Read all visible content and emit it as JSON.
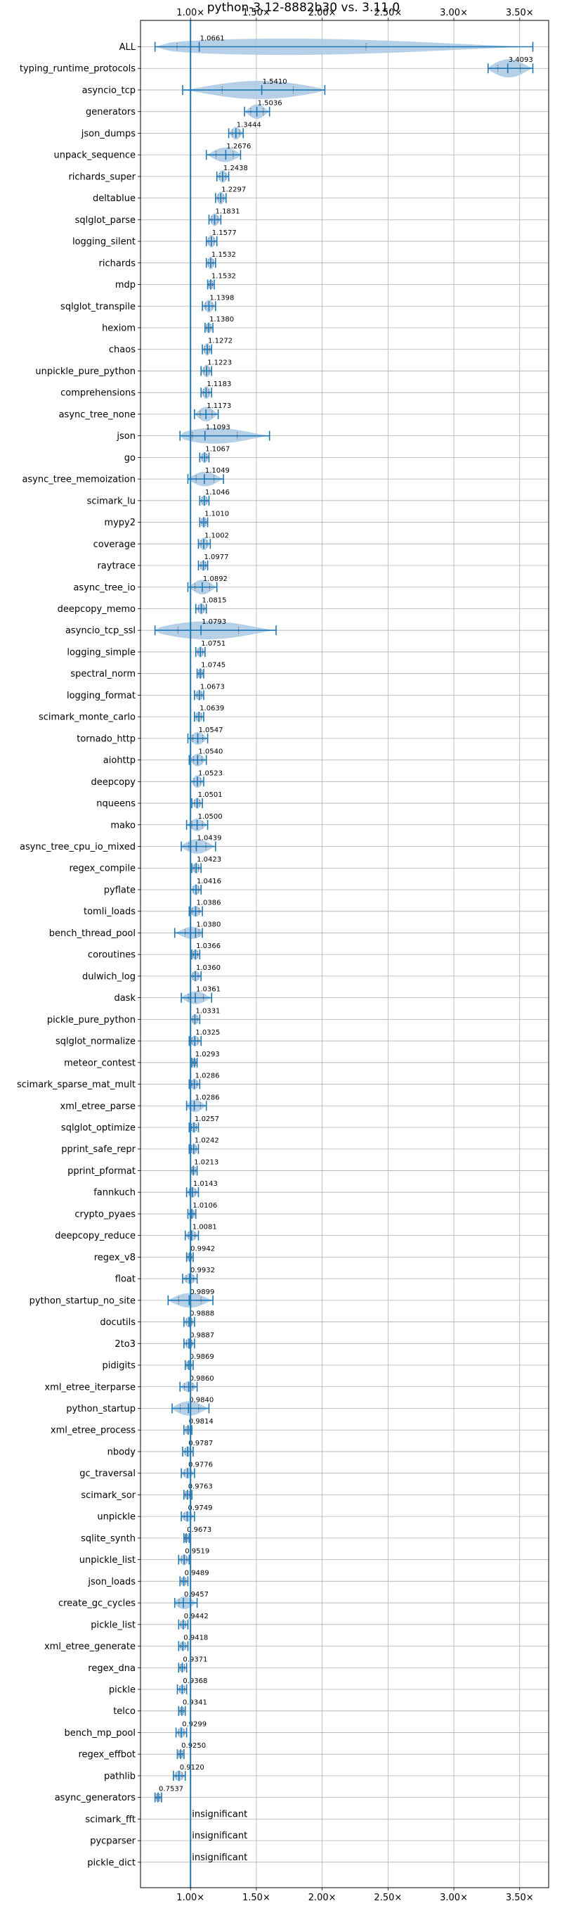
{
  "chart_data": {
    "type": "violin",
    "title": "python-3.12-8882b30 vs. 3.11.0",
    "xlim": [
      0.62,
      3.72
    ],
    "xticks": [
      1.0,
      1.5,
      2.0,
      2.5,
      3.0,
      3.5
    ],
    "xtick_labels": [
      "1.00×",
      "1.50×",
      "2.00×",
      "2.50×",
      "3.00×",
      "3.50×"
    ],
    "x_tick_position": "top and bottom",
    "grid": true,
    "reference_line": 1.0,
    "color": "#1f77b4",
    "fill_color": "#a9c8e4",
    "benchmarks": [
      {
        "name": "ALL",
        "label": "1.0661",
        "median": 1.0661,
        "min": 0.73,
        "max": 3.6,
        "width": 1.0
      },
      {
        "name": "typing_runtime_protocols",
        "label": "3.4093",
        "median": 3.4093,
        "min": 3.26,
        "max": 3.6,
        "width": 1.0
      },
      {
        "name": "asyncio_tcp",
        "label": "1.5410",
        "median": 1.541,
        "min": 0.94,
        "max": 2.02,
        "width": 1.0
      },
      {
        "name": "generators",
        "label": "1.5036",
        "median": 1.5036,
        "min": 1.41,
        "max": 1.6,
        "width": 0.8
      },
      {
        "name": "json_dumps",
        "label": "1.3444",
        "median": 1.3444,
        "min": 1.29,
        "max": 1.4,
        "width": 0.7
      },
      {
        "name": "unpack_sequence",
        "label": "1.2676",
        "median": 1.2676,
        "min": 1.12,
        "max": 1.38,
        "width": 0.8
      },
      {
        "name": "richards_super",
        "label": "1.2438",
        "median": 1.2438,
        "min": 1.2,
        "max": 1.29,
        "width": 0.7
      },
      {
        "name": "deltablue",
        "label": "1.2297",
        "median": 1.2297,
        "min": 1.19,
        "max": 1.27,
        "width": 0.7
      },
      {
        "name": "sqlglot_parse",
        "label": "1.1831",
        "median": 1.1831,
        "min": 1.14,
        "max": 1.23,
        "width": 0.7
      },
      {
        "name": "logging_silent",
        "label": "1.1577",
        "median": 1.1577,
        "min": 1.12,
        "max": 1.2,
        "width": 0.7
      },
      {
        "name": "richards",
        "label": "1.1532",
        "median": 1.1532,
        "min": 1.12,
        "max": 1.19,
        "width": 0.7
      },
      {
        "name": "mdp",
        "label": "1.1532",
        "median": 1.1532,
        "min": 1.13,
        "max": 1.18,
        "width": 0.6
      },
      {
        "name": "sqlglot_transpile",
        "label": "1.1398",
        "median": 1.1398,
        "min": 1.09,
        "max": 1.19,
        "width": 0.7
      },
      {
        "name": "hexiom",
        "label": "1.1380",
        "median": 1.138,
        "min": 1.11,
        "max": 1.17,
        "width": 0.6
      },
      {
        "name": "chaos",
        "label": "1.1272",
        "median": 1.1272,
        "min": 1.09,
        "max": 1.16,
        "width": 0.7
      },
      {
        "name": "unpickle_pure_python",
        "label": "1.1223",
        "median": 1.1223,
        "min": 1.08,
        "max": 1.16,
        "width": 0.7
      },
      {
        "name": "comprehensions",
        "label": "1.1183",
        "median": 1.1183,
        "min": 1.08,
        "max": 1.16,
        "width": 0.7
      },
      {
        "name": "async_tree_none",
        "label": "1.1173",
        "median": 1.1173,
        "min": 1.03,
        "max": 1.21,
        "width": 0.8
      },
      {
        "name": "json",
        "label": "1.1093",
        "median": 1.1093,
        "min": 0.92,
        "max": 1.6,
        "width": 0.9
      },
      {
        "name": "go",
        "label": "1.1067",
        "median": 1.1067,
        "min": 1.07,
        "max": 1.14,
        "width": 0.6
      },
      {
        "name": "async_tree_memoization",
        "label": "1.1049",
        "median": 1.1049,
        "min": 0.98,
        "max": 1.25,
        "width": 0.8
      },
      {
        "name": "scimark_lu",
        "label": "1.1046",
        "median": 1.1046,
        "min": 1.07,
        "max": 1.14,
        "width": 0.6
      },
      {
        "name": "mypy2",
        "label": "1.1010",
        "median": 1.101,
        "min": 1.07,
        "max": 1.13,
        "width": 0.6
      },
      {
        "name": "coverage",
        "label": "1.1002",
        "median": 1.1002,
        "min": 1.06,
        "max": 1.15,
        "width": 0.7
      },
      {
        "name": "raytrace",
        "label": "1.0977",
        "median": 1.0977,
        "min": 1.06,
        "max": 1.13,
        "width": 0.6
      },
      {
        "name": "async_tree_io",
        "label": "1.0892",
        "median": 1.0892,
        "min": 0.98,
        "max": 1.2,
        "width": 0.8
      },
      {
        "name": "deepcopy_memo",
        "label": "1.0815",
        "median": 1.0815,
        "min": 1.04,
        "max": 1.12,
        "width": 0.6
      },
      {
        "name": "asyncio_tcp_ssl",
        "label": "1.0793",
        "median": 1.0793,
        "min": 0.73,
        "max": 1.65,
        "width": 1.0
      },
      {
        "name": "logging_simple",
        "label": "1.0751",
        "median": 1.0751,
        "min": 1.04,
        "max": 1.11,
        "width": 0.6
      },
      {
        "name": "spectral_norm",
        "label": "1.0745",
        "median": 1.0745,
        "min": 1.05,
        "max": 1.1,
        "width": 0.6
      },
      {
        "name": "logging_format",
        "label": "1.0673",
        "median": 1.0673,
        "min": 1.03,
        "max": 1.1,
        "width": 0.6
      },
      {
        "name": "scimark_monte_carlo",
        "label": "1.0639",
        "median": 1.0639,
        "min": 1.03,
        "max": 1.1,
        "width": 0.6
      },
      {
        "name": "tornado_http",
        "label": "1.0547",
        "median": 1.0547,
        "min": 0.98,
        "max": 1.13,
        "width": 0.7
      },
      {
        "name": "aiohttp",
        "label": "1.0540",
        "median": 1.054,
        "min": 0.99,
        "max": 1.12,
        "width": 0.7
      },
      {
        "name": "deepcopy",
        "label": "1.0523",
        "median": 1.0523,
        "min": 1.0,
        "max": 1.1,
        "width": 0.7
      },
      {
        "name": "nqueens",
        "label": "1.0501",
        "median": 1.0501,
        "min": 1.01,
        "max": 1.09,
        "width": 0.6
      },
      {
        "name": "mako",
        "label": "1.0500",
        "median": 1.05,
        "min": 0.97,
        "max": 1.13,
        "width": 0.7
      },
      {
        "name": "async_tree_cpu_io_mixed",
        "label": "1.0439",
        "median": 1.0439,
        "min": 0.93,
        "max": 1.19,
        "width": 0.8
      },
      {
        "name": "regex_compile",
        "label": "1.0423",
        "median": 1.0423,
        "min": 1.01,
        "max": 1.08,
        "width": 0.6
      },
      {
        "name": "pyflate",
        "label": "1.0416",
        "median": 1.0416,
        "min": 1.0,
        "max": 1.08,
        "width": 0.6
      },
      {
        "name": "tomli_loads",
        "label": "1.0386",
        "median": 1.0386,
        "min": 0.99,
        "max": 1.09,
        "width": 0.6
      },
      {
        "name": "bench_thread_pool",
        "label": "1.0380",
        "median": 1.038,
        "min": 0.88,
        "max": 1.09,
        "width": 0.7
      },
      {
        "name": "coroutines",
        "label": "1.0366",
        "median": 1.0366,
        "min": 1.01,
        "max": 1.07,
        "width": 0.6
      },
      {
        "name": "dulwich_log",
        "label": "1.0360",
        "median": 1.036,
        "min": 1.0,
        "max": 1.08,
        "width": 0.6
      },
      {
        "name": "dask",
        "label": "1.0361",
        "median": 1.0361,
        "min": 0.93,
        "max": 1.16,
        "width": 0.7
      },
      {
        "name": "pickle_pure_python",
        "label": "1.0331",
        "median": 1.0331,
        "min": 1.0,
        "max": 1.07,
        "width": 0.6
      },
      {
        "name": "sqlglot_normalize",
        "label": "1.0325",
        "median": 1.0325,
        "min": 0.99,
        "max": 1.08,
        "width": 0.6
      },
      {
        "name": "meteor_contest",
        "label": "1.0293",
        "median": 1.0293,
        "min": 1.01,
        "max": 1.05,
        "width": 0.5
      },
      {
        "name": "scimark_sparse_mat_mult",
        "label": "1.0286",
        "median": 1.0286,
        "min": 0.99,
        "max": 1.07,
        "width": 0.6
      },
      {
        "name": "xml_etree_parse",
        "label": "1.0286",
        "median": 1.0286,
        "min": 0.97,
        "max": 1.12,
        "width": 0.7
      },
      {
        "name": "sqlglot_optimize",
        "label": "1.0257",
        "median": 1.0257,
        "min": 0.99,
        "max": 1.06,
        "width": 0.6
      },
      {
        "name": "pprint_safe_repr",
        "label": "1.0242",
        "median": 1.0242,
        "min": 0.99,
        "max": 1.06,
        "width": 0.6
      },
      {
        "name": "pprint_pformat",
        "label": "1.0213",
        "median": 1.0213,
        "min": 1.0,
        "max": 1.05,
        "width": 0.5
      },
      {
        "name": "fannkuch",
        "label": "1.0143",
        "median": 1.0143,
        "min": 0.97,
        "max": 1.06,
        "width": 0.6
      },
      {
        "name": "crypto_pyaes",
        "label": "1.0106",
        "median": 1.0106,
        "min": 0.98,
        "max": 1.04,
        "width": 0.5
      },
      {
        "name": "deepcopy_reduce",
        "label": "1.0081",
        "median": 1.0081,
        "min": 0.96,
        "max": 1.06,
        "width": 0.6
      },
      {
        "name": "regex_v8",
        "label": "0.9942",
        "median": 0.9942,
        "min": 0.97,
        "max": 1.02,
        "width": 0.5
      },
      {
        "name": "float",
        "label": "0.9932",
        "median": 0.9932,
        "min": 0.94,
        "max": 1.05,
        "width": 0.6
      },
      {
        "name": "python_startup_no_site",
        "label": "0.9899",
        "median": 0.9899,
        "min": 0.83,
        "max": 1.17,
        "width": 0.8
      },
      {
        "name": "docutils",
        "label": "0.9888",
        "median": 0.9888,
        "min": 0.95,
        "max": 1.03,
        "width": 0.6
      },
      {
        "name": "2to3",
        "label": "0.9887",
        "median": 0.9887,
        "min": 0.95,
        "max": 1.03,
        "width": 0.6
      },
      {
        "name": "pidigits",
        "label": "0.9869",
        "median": 0.9869,
        "min": 0.96,
        "max": 1.02,
        "width": 0.5
      },
      {
        "name": "xml_etree_iterparse",
        "label": "0.9860",
        "median": 0.986,
        "min": 0.92,
        "max": 1.05,
        "width": 0.6
      },
      {
        "name": "python_startup",
        "label": "0.9840",
        "median": 0.984,
        "min": 0.86,
        "max": 1.14,
        "width": 0.8
      },
      {
        "name": "xml_etree_process",
        "label": "0.9814",
        "median": 0.9814,
        "min": 0.95,
        "max": 1.01,
        "width": 0.5
      },
      {
        "name": "nbody",
        "label": "0.9787",
        "median": 0.9787,
        "min": 0.94,
        "max": 1.02,
        "width": 0.6
      },
      {
        "name": "gc_traversal",
        "label": "0.9776",
        "median": 0.9776,
        "min": 0.93,
        "max": 1.03,
        "width": 0.6
      },
      {
        "name": "scimark_sor",
        "label": "0.9763",
        "median": 0.9763,
        "min": 0.95,
        "max": 1.01,
        "width": 0.5
      },
      {
        "name": "unpickle",
        "label": "0.9749",
        "median": 0.9749,
        "min": 0.93,
        "max": 1.03,
        "width": 0.6
      },
      {
        "name": "sqlite_synth",
        "label": "0.9673",
        "median": 0.9673,
        "min": 0.95,
        "max": 0.99,
        "width": 0.5
      },
      {
        "name": "unpickle_list",
        "label": "0.9519",
        "median": 0.9519,
        "min": 0.91,
        "max": 0.99,
        "width": 0.6
      },
      {
        "name": "json_loads",
        "label": "0.9489",
        "median": 0.9489,
        "min": 0.92,
        "max": 0.98,
        "width": 0.5
      },
      {
        "name": "create_gc_cycles",
        "label": "0.9457",
        "median": 0.9457,
        "min": 0.88,
        "max": 1.05,
        "width": 0.7
      },
      {
        "name": "pickle_list",
        "label": "0.9442",
        "median": 0.9442,
        "min": 0.91,
        "max": 0.98,
        "width": 0.5
      },
      {
        "name": "xml_etree_generate",
        "label": "0.9418",
        "median": 0.9418,
        "min": 0.91,
        "max": 0.98,
        "width": 0.5
      },
      {
        "name": "regex_dna",
        "label": "0.9371",
        "median": 0.9371,
        "min": 0.91,
        "max": 0.97,
        "width": 0.5
      },
      {
        "name": "pickle",
        "label": "0.9368",
        "median": 0.9368,
        "min": 0.9,
        "max": 0.97,
        "width": 0.5
      },
      {
        "name": "telco",
        "label": "0.9341",
        "median": 0.9341,
        "min": 0.91,
        "max": 0.96,
        "width": 0.5
      },
      {
        "name": "bench_mp_pool",
        "label": "0.9299",
        "median": 0.9299,
        "min": 0.89,
        "max": 0.97,
        "width": 0.6
      },
      {
        "name": "regex_effbot",
        "label": "0.9250",
        "median": 0.925,
        "min": 0.9,
        "max": 0.95,
        "width": 0.5
      },
      {
        "name": "pathlib",
        "label": "0.9120",
        "median": 0.912,
        "min": 0.87,
        "max": 0.96,
        "width": 0.6
      },
      {
        "name": "async_generators",
        "label": "0.7537",
        "median": 0.7537,
        "min": 0.73,
        "max": 0.78,
        "width": 0.5
      },
      {
        "name": "scimark_fft",
        "label": "insignificant",
        "insignificant": true
      },
      {
        "name": "pycparser",
        "label": "insignificant",
        "insignificant": true
      },
      {
        "name": "pickle_dict",
        "label": "insignificant",
        "insignificant": true
      }
    ]
  }
}
